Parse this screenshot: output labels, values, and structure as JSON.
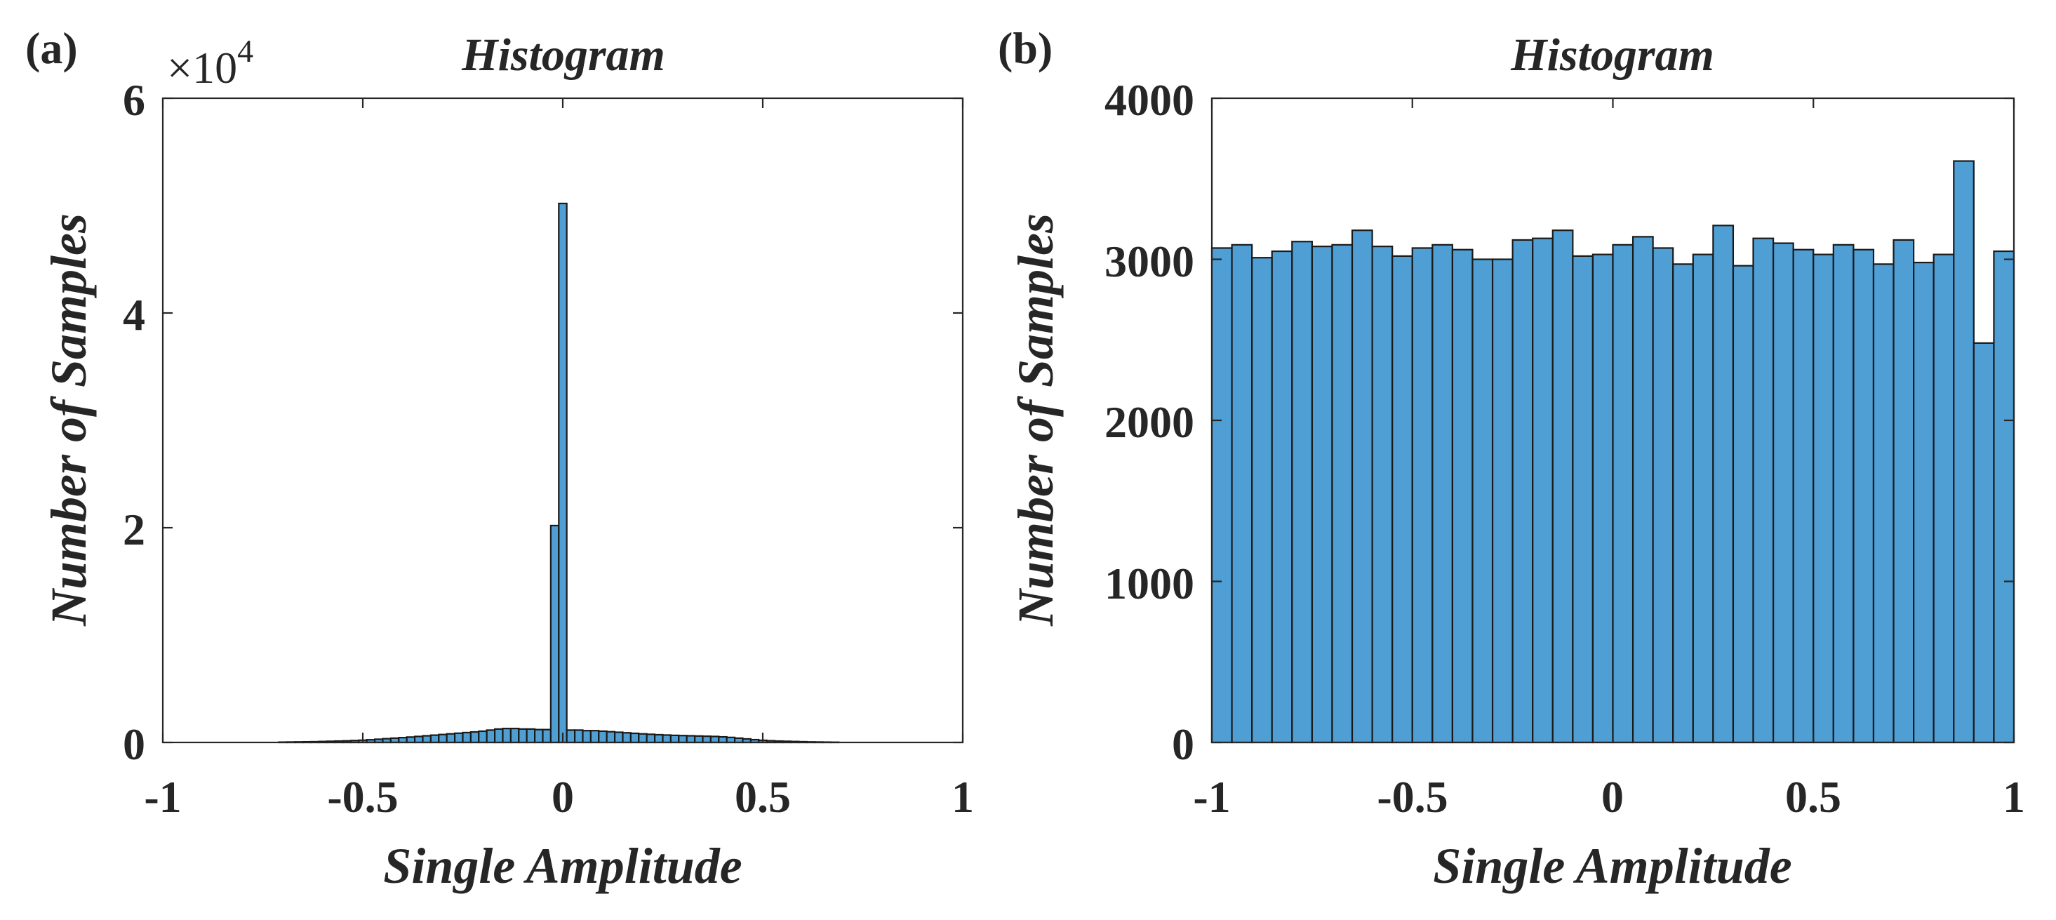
{
  "chart_data": [
    {
      "type": "bar",
      "panel_label": "(a)",
      "title": "Histogram",
      "xlabel": "Single Amplitude",
      "ylabel": "Number of Samples",
      "exponent_label": {
        "base": "×10",
        "power": "4"
      },
      "xlim": [
        -1,
        1
      ],
      "ylim": [
        0,
        60000
      ],
      "xticks": [
        "-1",
        "-0.5",
        "0",
        "0.5",
        "1"
      ],
      "yticks": [
        "0",
        "2",
        "4",
        "6"
      ],
      "x": [
        -0.7,
        -0.68,
        -0.66,
        -0.64,
        -0.62,
        -0.6,
        -0.58,
        -0.56,
        -0.54,
        -0.52,
        -0.5,
        -0.48,
        -0.46,
        -0.44,
        -0.42,
        -0.4,
        -0.38,
        -0.36,
        -0.34,
        -0.32,
        -0.3,
        -0.28,
        -0.26,
        -0.24,
        -0.22,
        -0.2,
        -0.18,
        -0.16,
        -0.14,
        -0.12,
        -0.1,
        -0.08,
        -0.06,
        -0.04,
        -0.02,
        0,
        0.02,
        0.04,
        0.06,
        0.08,
        0.1,
        0.12,
        0.14,
        0.16,
        0.18,
        0.2,
        0.22,
        0.24,
        0.26,
        0.28,
        0.3,
        0.32,
        0.34,
        0.36,
        0.38,
        0.4,
        0.42,
        0.44,
        0.46,
        0.48,
        0.5,
        0.52,
        0.54,
        0.56,
        0.58,
        0.6,
        0.62,
        0.64,
        0.66,
        0.68
      ],
      "values": [
        30,
        40,
        50,
        60,
        70,
        90,
        110,
        130,
        150,
        180,
        210,
        250,
        300,
        350,
        400,
        450,
        500,
        560,
        620,
        680,
        740,
        800,
        860,
        920,
        980,
        1050,
        1150,
        1250,
        1300,
        1300,
        1250,
        1250,
        1200,
        1200,
        20200,
        50200,
        1150,
        1150,
        1100,
        1100,
        1050,
        1000,
        950,
        900,
        850,
        800,
        760,
        720,
        690,
        660,
        640,
        620,
        600,
        580,
        560,
        520,
        470,
        400,
        330,
        260,
        200,
        160,
        130,
        110,
        90,
        70,
        50,
        40,
        30,
        20
      ]
    },
    {
      "type": "bar",
      "panel_label": "(b)",
      "title": "Histogram",
      "xlabel": "Single Amplitude",
      "ylabel": "Number of Samples",
      "xlim": [
        -1,
        1
      ],
      "ylim": [
        0,
        4000
      ],
      "xticks": [
        "-1",
        "-0.5",
        "0",
        "0.5",
        "1"
      ],
      "yticks": [
        "0",
        "1000",
        "2000",
        "3000",
        "4000"
      ],
      "x": [
        -0.975,
        -0.925,
        -0.875,
        -0.825,
        -0.775,
        -0.725,
        -0.675,
        -0.625,
        -0.575,
        -0.525,
        -0.475,
        -0.425,
        -0.375,
        -0.325,
        -0.275,
        -0.225,
        -0.175,
        -0.125,
        -0.075,
        -0.025,
        0.025,
        0.075,
        0.125,
        0.175,
        0.225,
        0.275,
        0.325,
        0.375,
        0.425,
        0.475,
        0.525,
        0.575,
        0.625,
        0.675,
        0.725,
        0.775,
        0.825,
        0.875,
        0.925,
        0.975
      ],
      "values": [
        3070,
        3090,
        3010,
        3050,
        3110,
        3080,
        3090,
        3180,
        3080,
        3020,
        3070,
        3090,
        3060,
        3000,
        3000,
        3120,
        3130,
        3180,
        3020,
        3030,
        3090,
        3140,
        3070,
        2970,
        3030,
        3210,
        2960,
        3130,
        3100,
        3060,
        3030,
        3090,
        3060,
        2970,
        3120,
        2980,
        3030,
        3610,
        2480,
        3050
      ]
    }
  ]
}
